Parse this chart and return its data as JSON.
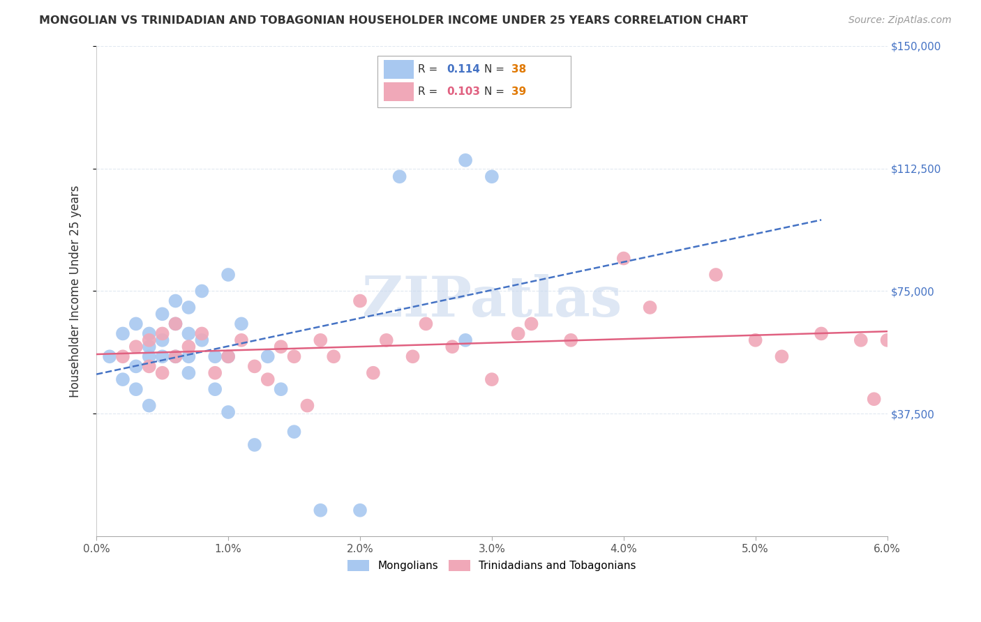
{
  "title": "MONGOLIAN VS TRINIDADIAN AND TOBAGONIAN HOUSEHOLDER INCOME UNDER 25 YEARS CORRELATION CHART",
  "source": "Source: ZipAtlas.com",
  "ylabel": "Householder Income Under 25 years",
  "xlim": [
    0.0,
    0.06
  ],
  "ylim": [
    0,
    150000
  ],
  "xtick_labels": [
    "0.0%",
    "1.0%",
    "2.0%",
    "3.0%",
    "4.0%",
    "5.0%",
    "6.0%"
  ],
  "xtick_values": [
    0.0,
    0.01,
    0.02,
    0.03,
    0.04,
    0.05,
    0.06
  ],
  "ytick_labels": [
    "$37,500",
    "$75,000",
    "$112,500",
    "$150,000"
  ],
  "ytick_values": [
    37500,
    75000,
    112500,
    150000
  ],
  "mongolian_color": "#a8c8f0",
  "trinidadian_color": "#f0a8b8",
  "mongolian_line_color": "#4472c4",
  "trinidadian_line_color": "#e06080",
  "legend_R1_val": "0.114",
  "legend_N1_val": "38",
  "legend_R2_val": "0.103",
  "legend_N2_val": "39",
  "watermark": "ZIPatlas",
  "watermark_color": "#c8d8ee",
  "background_color": "#ffffff",
  "grid_color": "#e0e8f0",
  "mongolian_x": [
    0.001,
    0.002,
    0.002,
    0.003,
    0.003,
    0.003,
    0.004,
    0.004,
    0.004,
    0.004,
    0.005,
    0.005,
    0.005,
    0.006,
    0.006,
    0.006,
    0.007,
    0.007,
    0.007,
    0.007,
    0.008,
    0.008,
    0.009,
    0.009,
    0.01,
    0.01,
    0.01,
    0.011,
    0.012,
    0.013,
    0.014,
    0.015,
    0.017,
    0.02,
    0.023,
    0.028,
    0.028,
    0.03
  ],
  "mongolian_y": [
    55000,
    62000,
    48000,
    65000,
    52000,
    45000,
    58000,
    62000,
    55000,
    40000,
    68000,
    60000,
    55000,
    72000,
    65000,
    55000,
    70000,
    62000,
    55000,
    50000,
    75000,
    60000,
    45000,
    55000,
    80000,
    55000,
    38000,
    65000,
    28000,
    55000,
    45000,
    32000,
    8000,
    8000,
    110000,
    115000,
    60000,
    110000
  ],
  "trinidadian_x": [
    0.002,
    0.003,
    0.004,
    0.004,
    0.005,
    0.005,
    0.006,
    0.006,
    0.007,
    0.008,
    0.009,
    0.01,
    0.011,
    0.012,
    0.013,
    0.014,
    0.015,
    0.016,
    0.017,
    0.018,
    0.02,
    0.021,
    0.022,
    0.024,
    0.025,
    0.027,
    0.03,
    0.032,
    0.033,
    0.036,
    0.04,
    0.042,
    0.047,
    0.05,
    0.052,
    0.055,
    0.058,
    0.059,
    0.06
  ],
  "trinidadian_y": [
    55000,
    58000,
    60000,
    52000,
    62000,
    50000,
    65000,
    55000,
    58000,
    62000,
    50000,
    55000,
    60000,
    52000,
    48000,
    58000,
    55000,
    40000,
    60000,
    55000,
    72000,
    50000,
    60000,
    55000,
    65000,
    58000,
    48000,
    62000,
    65000,
    60000,
    85000,
    70000,
    80000,
    60000,
    55000,
    62000,
    60000,
    42000,
    60000
  ]
}
